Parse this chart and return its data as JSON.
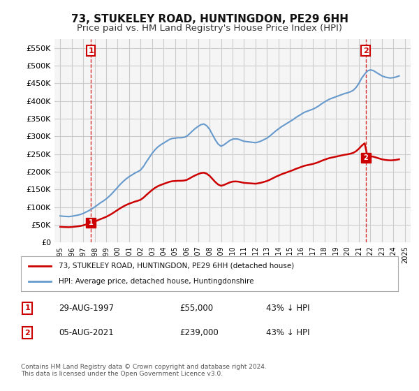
{
  "title": "73, STUKELEY ROAD, HUNTINGDON, PE29 6HH",
  "subtitle": "Price paid vs. HM Land Registry's House Price Index (HPI)",
  "title_fontsize": 11,
  "subtitle_fontsize": 9.5,
  "ylabel_ticks": [
    "£0",
    "£50K",
    "£100K",
    "£150K",
    "£200K",
    "£250K",
    "£300K",
    "£350K",
    "£400K",
    "£450K",
    "£500K",
    "£550K"
  ],
  "ytick_values": [
    0,
    50000,
    100000,
    150000,
    200000,
    250000,
    300000,
    350000,
    400000,
    450000,
    500000,
    550000
  ],
  "ylim": [
    0,
    575000
  ],
  "xlim_min": 1994.5,
  "xlim_max": 2025.5,
  "xtick_years": [
    1995,
    1996,
    1997,
    1998,
    1999,
    2000,
    2001,
    2002,
    2003,
    2004,
    2005,
    2006,
    2007,
    2008,
    2009,
    2010,
    2011,
    2012,
    2013,
    2014,
    2015,
    2016,
    2017,
    2018,
    2019,
    2020,
    2021,
    2022,
    2023,
    2024,
    2025
  ],
  "hpi_years": [
    1995.0,
    1995.25,
    1995.5,
    1995.75,
    1996.0,
    1996.25,
    1996.5,
    1996.75,
    1997.0,
    1997.25,
    1997.5,
    1997.75,
    1998.0,
    1998.25,
    1998.5,
    1998.75,
    1999.0,
    1999.25,
    1999.5,
    1999.75,
    2000.0,
    2000.25,
    2000.5,
    2000.75,
    2001.0,
    2001.25,
    2001.5,
    2001.75,
    2002.0,
    2002.25,
    2002.5,
    2002.75,
    2003.0,
    2003.25,
    2003.5,
    2003.75,
    2004.0,
    2004.25,
    2004.5,
    2004.75,
    2005.0,
    2005.25,
    2005.5,
    2005.75,
    2006.0,
    2006.25,
    2006.5,
    2006.75,
    2007.0,
    2007.25,
    2007.5,
    2007.75,
    2008.0,
    2008.25,
    2008.5,
    2008.75,
    2009.0,
    2009.25,
    2009.5,
    2009.75,
    2010.0,
    2010.25,
    2010.5,
    2010.75,
    2011.0,
    2011.25,
    2011.5,
    2011.75,
    2012.0,
    2012.25,
    2012.5,
    2012.75,
    2013.0,
    2013.25,
    2013.5,
    2013.75,
    2014.0,
    2014.25,
    2014.5,
    2014.75,
    2015.0,
    2015.25,
    2015.5,
    2015.75,
    2016.0,
    2016.25,
    2016.5,
    2016.75,
    2017.0,
    2017.25,
    2017.5,
    2017.75,
    2018.0,
    2018.25,
    2018.5,
    2018.75,
    2019.0,
    2019.25,
    2019.5,
    2019.75,
    2020.0,
    2020.25,
    2020.5,
    2020.75,
    2021.0,
    2021.25,
    2021.5,
    2021.75,
    2022.0,
    2022.25,
    2022.5,
    2022.75,
    2023.0,
    2023.25,
    2023.5,
    2023.75,
    2024.0,
    2024.25,
    2024.5
  ],
  "hpi_values": [
    75000,
    74000,
    73500,
    73000,
    74000,
    75500,
    77000,
    79000,
    82000,
    86000,
    90000,
    95000,
    100000,
    106000,
    112000,
    117000,
    123000,
    130000,
    138000,
    147000,
    156000,
    165000,
    173000,
    180000,
    186000,
    191000,
    196000,
    200000,
    205000,
    215000,
    228000,
    240000,
    252000,
    262000,
    270000,
    276000,
    281000,
    286000,
    291000,
    294000,
    295000,
    296000,
    296000,
    297000,
    300000,
    307000,
    315000,
    322000,
    328000,
    333000,
    335000,
    330000,
    320000,
    305000,
    290000,
    278000,
    272000,
    276000,
    282000,
    288000,
    292000,
    293000,
    292000,
    289000,
    286000,
    285000,
    284000,
    283000,
    282000,
    284000,
    287000,
    291000,
    295000,
    301000,
    308000,
    315000,
    321000,
    327000,
    332000,
    337000,
    342000,
    347000,
    353000,
    358000,
    363000,
    368000,
    371000,
    374000,
    377000,
    381000,
    386000,
    392000,
    397000,
    402000,
    406000,
    409000,
    412000,
    415000,
    418000,
    421000,
    423000,
    426000,
    430000,
    438000,
    450000,
    465000,
    476000,
    485000,
    488000,
    486000,
    481000,
    476000,
    471000,
    468000,
    466000,
    465000,
    466000,
    468000,
    471000
  ],
  "sale1_year": 1997.67,
  "sale1_price": 55000,
  "sale2_year": 2021.58,
  "sale2_price": 239000,
  "hpi_color": "#6699cc",
  "sale_color": "#cc0000",
  "marker1_label": "1",
  "marker2_label": "2",
  "legend_line1": "73, STUKELEY ROAD, HUNTINGDON, PE29 6HH (detached house)",
  "legend_line2": "HPI: Average price, detached house, Huntingdonshire",
  "table_row1": [
    "1",
    "29-AUG-1997",
    "£55,000",
    "43% ↓ HPI"
  ],
  "table_row2": [
    "2",
    "05-AUG-2021",
    "£239,000",
    "43% ↓ HPI"
  ],
  "footnote": "Contains HM Land Registry data © Crown copyright and database right 2024.\nThis data is licensed under the Open Government Licence v3.0.",
  "bg_color": "#ffffff",
  "grid_color": "#cccccc",
  "plot_bg_color": "#f5f5f5"
}
